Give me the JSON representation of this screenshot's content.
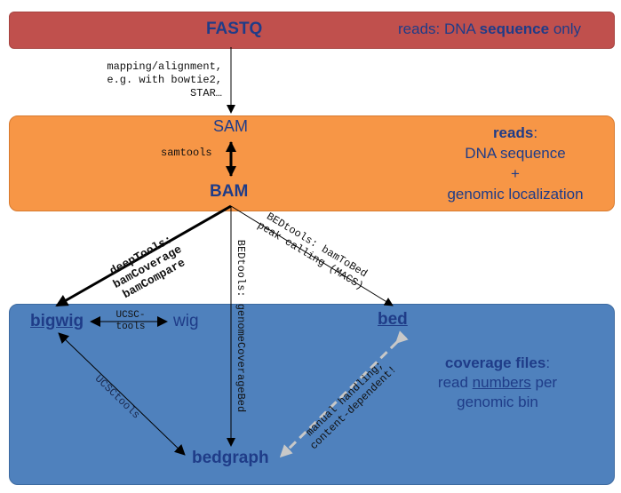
{
  "top": {
    "fastq": "FASTQ",
    "desc_pre": "reads: DNA ",
    "desc_bold": "sequence",
    "desc_post": " only"
  },
  "mapping_note": [
    "mapping/alignment,",
    "e.g. with bowtie2,",
    "STAR…"
  ],
  "middle": {
    "sam": "SAM",
    "bam": "BAM",
    "samtools": "samtools",
    "reads_bold": "reads",
    "reads_colon": ":",
    "line1": "DNA sequence",
    "line2": "+",
    "line3": "genomic localization"
  },
  "edges": {
    "deeptools": [
      "deepTools:",
      "bamCoverage",
      "bamCompare"
    ],
    "genomecov": "BEDtools: genomeCoverageBed",
    "bamtobed": [
      "BEDtools: bamToBed",
      "peak calling (MACS)"
    ],
    "ucsc_tools": [
      "UCSC-",
      "tools"
    ],
    "ucsctools_diag": "UCSCtools",
    "manual": [
      "manual handling;",
      "content-dependent!"
    ]
  },
  "bottom": {
    "bigwig": "bigwig",
    "wig": "wig",
    "bed": "bed",
    "bedgraph": "bedgraph",
    "cov_bold": "coverage files",
    "cov_colon": ":",
    "line1_pre": "read ",
    "line1_u": "numbers",
    "line1_post": " per",
    "line2": "genomic bin"
  },
  "colors": {
    "top_box": "#c0504d",
    "middle_box": "#f79646",
    "bottom_box": "#4f81bd",
    "text_navy": "#1f3c88"
  }
}
